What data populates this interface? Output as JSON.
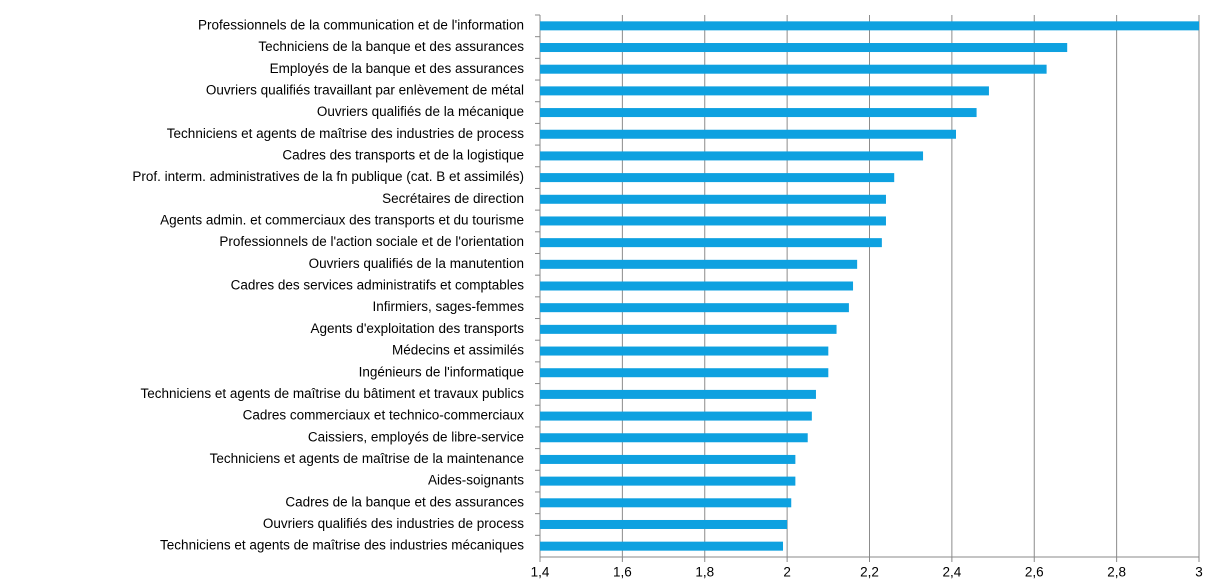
{
  "chart_data": {
    "type": "bar",
    "orientation": "horizontal",
    "categories": [
      "Professionnels de la communication et de l'information",
      "Techniciens de la banque et des assurances",
      "Employés de la banque et des assurances",
      "Ouvriers qualifiés travaillant par enlèvement de métal",
      "Ouvriers qualifiés de la mécanique",
      "Techniciens et agents de maîtrise des industries de process",
      "Cadres des transports et de la logistique",
      "Prof. interm. administratives de la fn publique (cat. B et assimilés)",
      "Secrétaires de direction",
      "Agents admin. et commerciaux des transports et du tourisme",
      "Professionnels de l'action sociale et de l'orientation",
      "Ouvriers qualifiés de la manutention",
      "Cadres des services administratifs et comptables",
      "Infirmiers, sages-femmes",
      "Agents d'exploitation des transports",
      "Médecins et assimilés",
      "Ingénieurs de l'informatique",
      "Techniciens et agents de maîtrise du bâtiment et travaux publics",
      "Cadres commerciaux et technico-commerciaux",
      "Caissiers, employés de libre-service",
      "Techniciens et agents de maîtrise de la maintenance",
      "Aides-soignants",
      "Cadres de la banque et des assurances",
      "Ouvriers qualifiés des industries de process",
      "Techniciens et agents de maîtrise des industries mécaniques"
    ],
    "values": [
      3.0,
      2.68,
      2.63,
      2.49,
      2.46,
      2.41,
      2.33,
      2.26,
      2.24,
      2.24,
      2.23,
      2.17,
      2.16,
      2.15,
      2.12,
      2.1,
      2.1,
      2.07,
      2.06,
      2.05,
      2.02,
      2.02,
      2.01,
      2.0,
      1.99
    ],
    "color": "#0ea1e0",
    "xlim": [
      1.4,
      3
    ],
    "xticks": [
      {
        "value": 1.4,
        "label": "1,4"
      },
      {
        "value": 1.6,
        "label": "1,6"
      },
      {
        "value": 1.8,
        "label": "1,8"
      },
      2,
      {
        "value": 2.2,
        "label": "2,2"
      },
      {
        "value": 2.4,
        "label": "2,4"
      },
      {
        "value": 2.6,
        "label": "2,6"
      },
      {
        "value": 2.8,
        "label": "2,8"
      },
      3
    ],
    "grid": true
  }
}
